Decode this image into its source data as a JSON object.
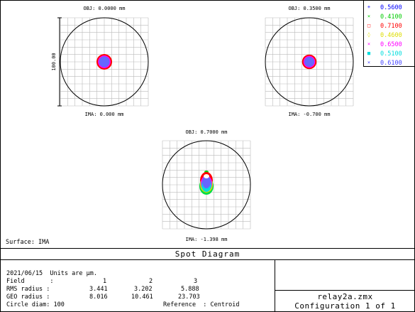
{
  "window": {
    "title": "Spot Diagram",
    "file": "relay2a.zmx",
    "configuration": "Configuration 1 of 1"
  },
  "chart_data": {
    "type": "scatter",
    "scale_bar_label": "100.00",
    "surface_label": "Surface: IMA",
    "wavelengths": [
      {
        "value": "0.5600",
        "color": "#0000ff",
        "marker": "+"
      },
      {
        "value": "0.4100",
        "color": "#00cc00",
        "marker": "×"
      },
      {
        "value": "0.7100",
        "color": "#ff0000",
        "marker": "□"
      },
      {
        "value": "0.4600",
        "color": "#dddd00",
        "marker": "◊"
      },
      {
        "value": "0.6500",
        "color": "#ff00ff",
        "marker": "×"
      },
      {
        "value": "0.5100",
        "color": "#00dddd",
        "marker": "■"
      },
      {
        "value": "0.6100",
        "color": "#4444ff",
        "marker": "×"
      }
    ],
    "fields": [
      {
        "obj_label": "OBJ: 0.0000 mm",
        "ima_label": "IMA: 0.000 mm",
        "spot_center": [
          0,
          0
        ],
        "spot_rms_um": 3.441
      },
      {
        "obj_label": "OBJ: 0.3500 mm",
        "ima_label": "IMA: -0.700 mm",
        "spot_center": [
          0,
          0
        ],
        "spot_rms_um": 3.202
      },
      {
        "obj_label": "OBJ: 0.7000 mm",
        "ima_label": "IMA: -1.398 mm",
        "spot_center": [
          0,
          0
        ],
        "spot_rms_um": 5.888
      }
    ]
  },
  "info": {
    "line1": "2021/06/15  Units are µm.",
    "field_label": "Field       :",
    "field_values": [
      "1",
      "2",
      "3"
    ],
    "rms_label": "RMS radius :",
    "rms_values": [
      "3.441",
      "3.202",
      "5.888"
    ],
    "geo_label": "GEO radius :",
    "geo_values": [
      "8.016",
      "10.461",
      "23.703"
    ],
    "circle_label": "Circle diam: 100",
    "reference": "Reference  : Centroid"
  }
}
